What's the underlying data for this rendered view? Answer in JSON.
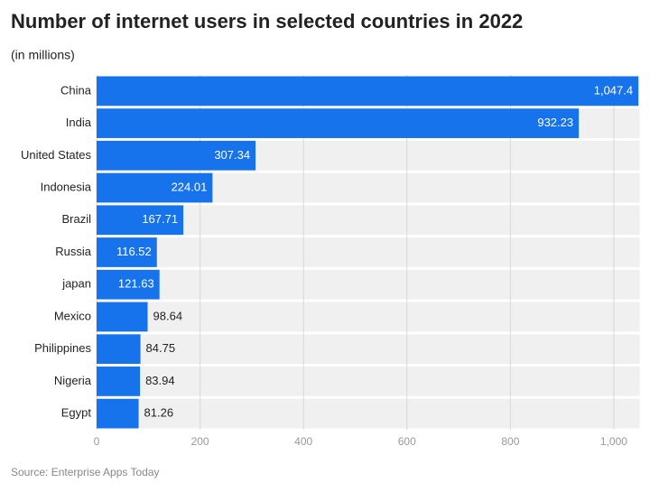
{
  "chart_data": {
    "type": "bar",
    "orientation": "horizontal",
    "title": "Number of internet users in selected countries in 2022",
    "subtitle": "(in millions)",
    "source": "Source: Enterprise Apps Today",
    "categories": [
      "China",
      "India",
      "United States",
      "Indonesia",
      "Brazil",
      "Russia",
      "japan",
      "Mexico",
      "Philippines",
      "Nigeria",
      "Egypt"
    ],
    "values": [
      1047.4,
      932.23,
      307.34,
      224.01,
      167.71,
      116.52,
      121.63,
      98.64,
      84.75,
      83.94,
      81.26
    ],
    "value_labels": [
      "1,047.4",
      "932.23",
      "307.34",
      "224.01",
      "167.71",
      "116.52",
      "121.63",
      "98.64",
      "84.75",
      "83.94",
      "81.26"
    ],
    "color": "#1673eb",
    "xlim": [
      0,
      1050
    ],
    "xticks": [
      0,
      200,
      400,
      600,
      800,
      {
        "value": 1000,
        "label": "1,000"
      }
    ],
    "grid": true
  }
}
